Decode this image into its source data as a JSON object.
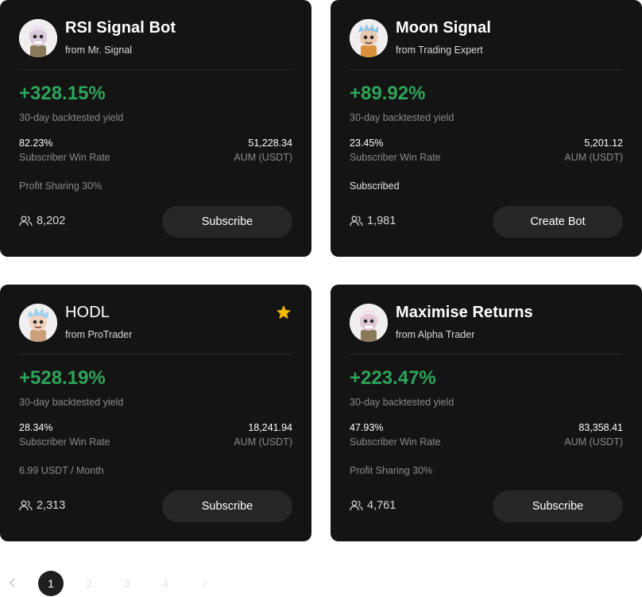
{
  "cards": [
    {
      "name": "RSI Signal Bot",
      "author": "from Mr. Signal",
      "avatar_icon": "robot-character-avatar",
      "yield": "+328.15%",
      "yield_label": "30-day backtested yield",
      "win_rate": "82.23%",
      "win_rate_label": "Subscriber Win Rate",
      "aum": "51,228.34",
      "aum_label": "AUM (USDT)",
      "note": "Profit Sharing 30%",
      "subscribers": "8,202",
      "button": "Subscribe",
      "favorited": false
    },
    {
      "name": "Moon Signal",
      "author": "from Trading Expert",
      "avatar_icon": "robot-character-avatar",
      "yield": "+89.92%",
      "yield_label": "30-day backtested yield",
      "win_rate": "23.45%",
      "win_rate_label": "Subscriber Win Rate",
      "aum": "5,201.12",
      "aum_label": "AUM (USDT)",
      "note": "Subscribed",
      "subscribers": "1,981",
      "button": "Create Bot",
      "favorited": false
    },
    {
      "name": "HODL",
      "author": "from ProTrader",
      "avatar_icon": "robot-character-avatar",
      "yield": "+528.19%",
      "yield_label": "30-day backtested yield",
      "win_rate": "28.34%",
      "win_rate_label": "Subscriber Win Rate",
      "aum": "18,241.94",
      "aum_label": "AUM (USDT)",
      "note": "6.99 USDT / Month",
      "subscribers": "2,313",
      "button": "Subscribe",
      "favorited": true
    },
    {
      "name": "Maximise Returns",
      "author": "from Alpha Trader",
      "avatar_icon": "robot-character-avatar",
      "yield": "+223.47%",
      "yield_label": "30-day backtested yield",
      "win_rate": "47.93%",
      "win_rate_label": "Subscriber Win Rate",
      "aum": "83,358.41",
      "aum_label": "AUM (USDT)",
      "note": "Profit Sharing 30%",
      "subscribers": "4,761",
      "button": "Subscribe",
      "favorited": false
    }
  ],
  "pagination": {
    "prev_icon": "chevron-left-icon",
    "pages": [
      "1",
      "2",
      "3",
      "4"
    ],
    "current": "1",
    "next_icon": "chevron-right-icon"
  },
  "colors": {
    "card_bg": "#141414",
    "yield_green": "#2ea55a",
    "star_yellow": "#f5b800",
    "button_bg": "#262626"
  }
}
